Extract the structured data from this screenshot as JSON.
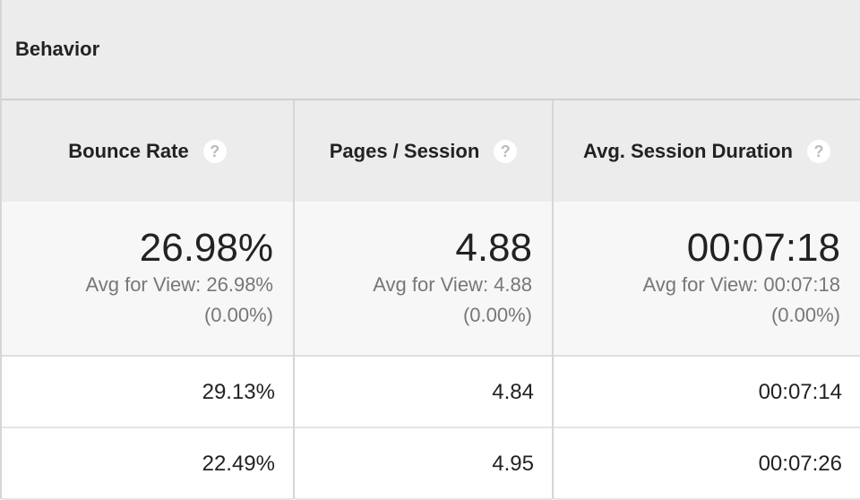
{
  "header": {
    "title": "Behavior"
  },
  "columns": [
    {
      "label": "Bounce Rate",
      "help": "?",
      "total": "26.98%",
      "avg": "Avg for View: 26.98%",
      "delta": "(0.00%)"
    },
    {
      "label": "Pages / Session",
      "help": "?",
      "total": "4.88",
      "avg": "Avg for View: 4.88",
      "delta": "(0.00%)"
    },
    {
      "label": "Avg. Session Duration",
      "help": "?",
      "total": "00:07:18",
      "avg": "Avg for View: 00:07:18",
      "delta": "(0.00%)"
    }
  ],
  "rows": [
    [
      "29.13%",
      "4.84",
      "00:07:14"
    ],
    [
      "22.49%",
      "4.95",
      "00:07:26"
    ]
  ]
}
